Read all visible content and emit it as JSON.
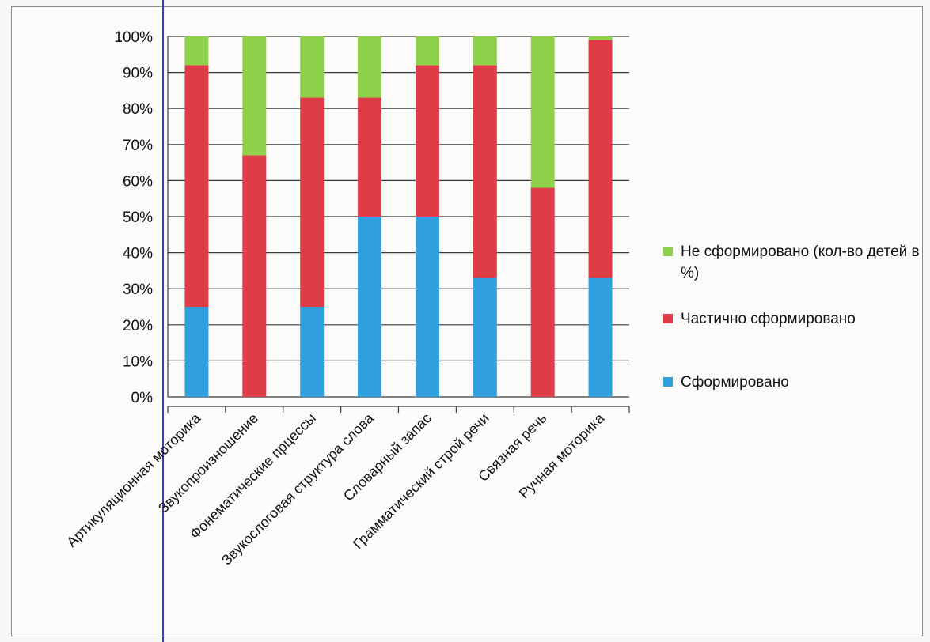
{
  "chart_data": {
    "type": "bar",
    "stacked": true,
    "percent": true,
    "categories": [
      "Артикуляционная моторика",
      "Звукопроизношение",
      "Фонематические прцессы",
      "Звукослоговая структура слова",
      "Словарный запас",
      "Грамматический строй речи",
      "Связная речь",
      "Ручная моторика"
    ],
    "series": [
      {
        "name": "Сформировано",
        "color": "#2f9fe0",
        "values": [
          25,
          0,
          25,
          50,
          50,
          33,
          0,
          33
        ]
      },
      {
        "name": "Частично сформировано",
        "color": "#de3d47",
        "values": [
          67,
          67,
          58,
          33,
          42,
          59,
          58,
          66
        ]
      },
      {
        "name": "Не сформировано (кол-во детей в %)",
        "color": "#8fd14a",
        "values": [
          8,
          33,
          17,
          17,
          8,
          8,
          42,
          1
        ]
      }
    ],
    "yticks": [
      "0%",
      "10%",
      "20%",
      "30%",
      "40%",
      "50%",
      "60%",
      "70%",
      "80%",
      "90%",
      "100%"
    ],
    "ylim": [
      0,
      100
    ],
    "grid": true,
    "legend_position": "right"
  }
}
